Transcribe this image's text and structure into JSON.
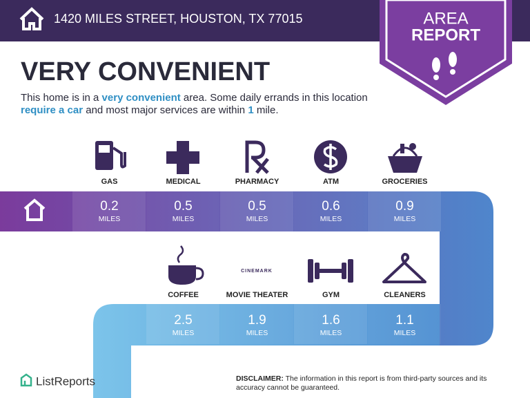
{
  "header": {
    "address": "1420 MILES STREET, HOUSTON, TX 77015"
  },
  "badge": {
    "line1": "AREA",
    "line2": "REPORT"
  },
  "headline": "VERY CONVENIENT",
  "description": {
    "parts": [
      "This home is in a ",
      "very convenient",
      " area. Some daily errands in this location ",
      "require a car",
      " and most major services are within ",
      "1",
      " mile."
    ]
  },
  "amenities_row1": [
    {
      "label": "GAS",
      "distance": "0.2",
      "unit": "MILES"
    },
    {
      "label": "MEDICAL",
      "distance": "0.5",
      "unit": "MILES"
    },
    {
      "label": "PHARMACY",
      "distance": "0.5",
      "unit": "MILES"
    },
    {
      "label": "ATM",
      "distance": "0.6",
      "unit": "MILES"
    },
    {
      "label": "GROCERIES",
      "distance": "0.9",
      "unit": "MILES"
    }
  ],
  "amenities_row2": [
    {
      "label": "COFFEE",
      "distance": "2.5",
      "unit": "MILES"
    },
    {
      "label": "MOVIE THEATER",
      "distance": "1.9",
      "unit": "MILES"
    },
    {
      "label": "GYM",
      "distance": "1.6",
      "unit": "MILES"
    },
    {
      "label": "CLEANERS",
      "distance": "1.1",
      "unit": "MILES"
    }
  ],
  "movie_logo": "CINEMARK",
  "footer": {
    "brand": "ListReports",
    "disclaimer_label": "DISCLAIMER:",
    "disclaimer_text": "The information in this report is from third-party sources and its accuracy cannot be guaranteed."
  }
}
